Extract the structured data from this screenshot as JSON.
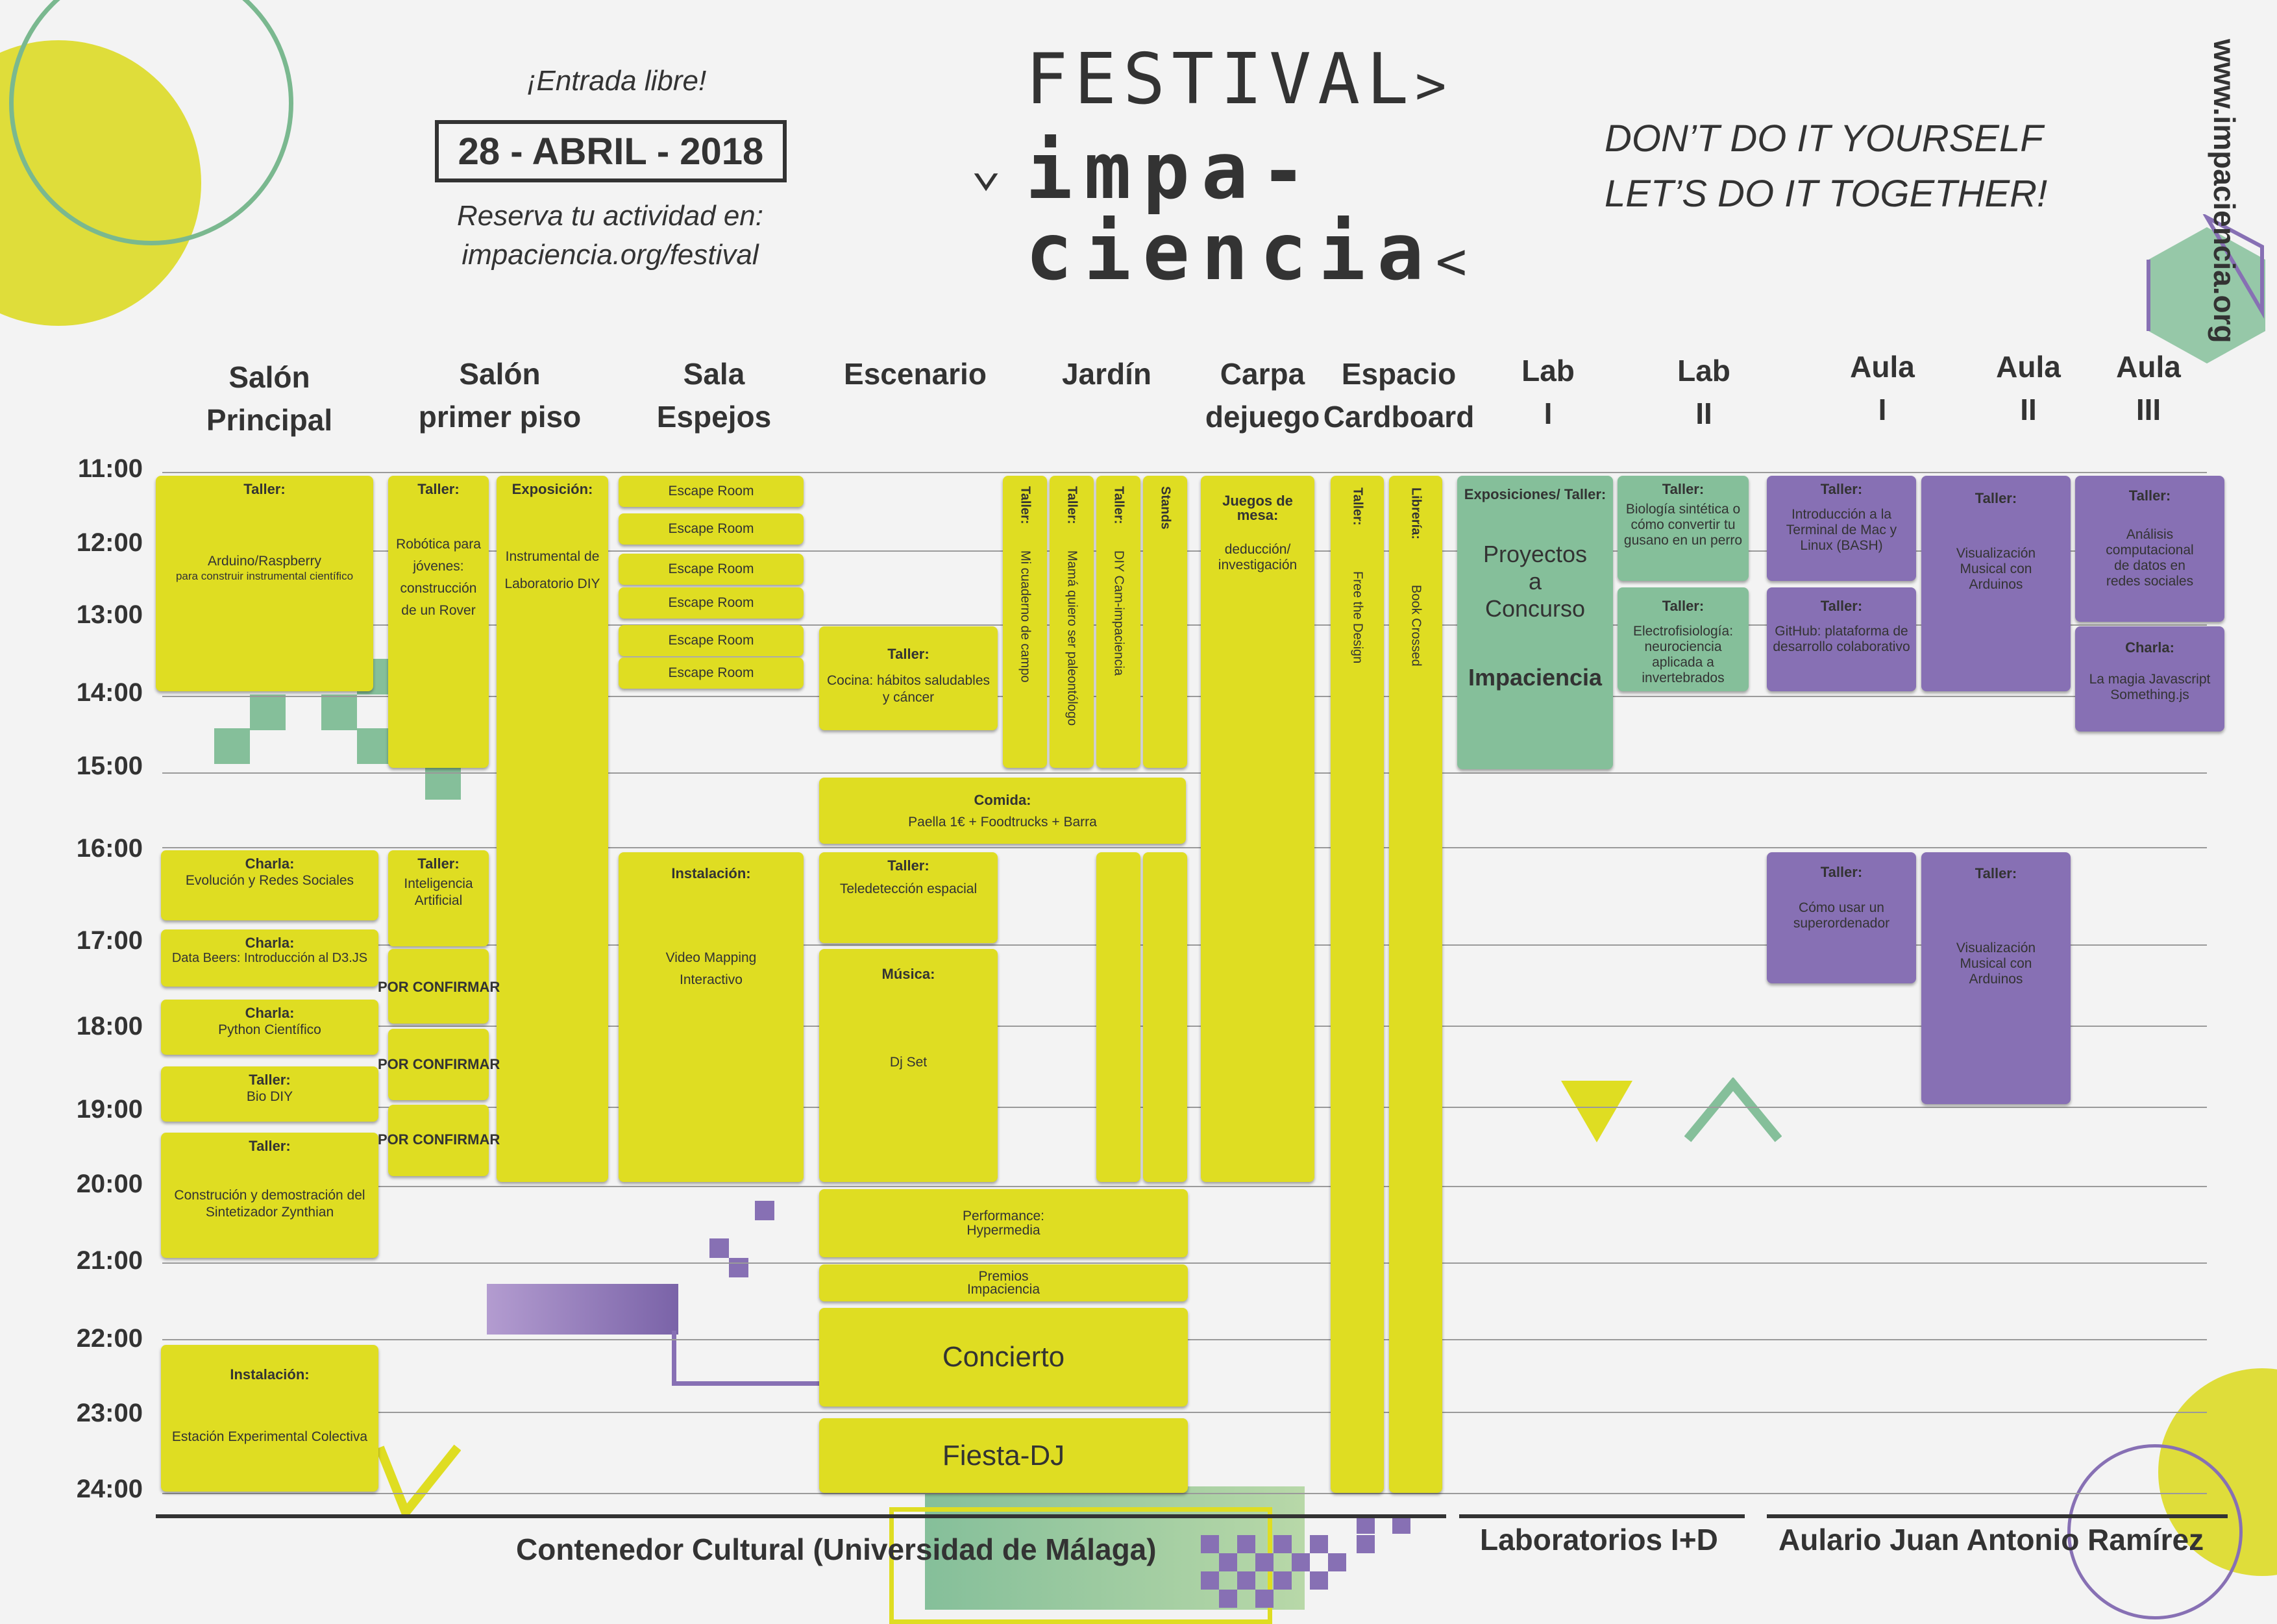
{
  "header": {
    "entrada": "¡Entrada libre!",
    "date": "28 - ABRIL - 2018",
    "reserva": "Reserva tu actividad en:",
    "reserva_url": "impaciencia.org/festival",
    "festival": "FESTIVAL",
    "impa": "impa-",
    "ciencia": "ciencia",
    "slogan1": "DON’T DO IT YOURSELF",
    "slogan2": "LET’S DO IT TOGETHER!",
    "website": "www.impaciencia.org"
  },
  "columns": [
    {
      "l1": "Salón",
      "l2": "Principal"
    },
    {
      "l1": "Salón",
      "l2": "primer piso"
    },
    {
      "l1": "Sala",
      "l2": "Espejos"
    },
    {
      "l1": "Escenario",
      "l2": ""
    },
    {
      "l1": "Jardín",
      "l2": ""
    },
    {
      "l1": "Carpa",
      "l2": "dejuego"
    },
    {
      "l1": "Espacio",
      "l2": "Cardboard"
    },
    {
      "l1": "Lab",
      "l2": "I"
    },
    {
      "l1": "Lab",
      "l2": "II"
    },
    {
      "l1": "Aula",
      "l2": "I"
    },
    {
      "l1": "Aula",
      "l2": "II"
    },
    {
      "l1": "Aula",
      "l2": "III"
    }
  ],
  "times": [
    "11:00",
    "12:00",
    "13:00",
    "14:00",
    "15:00",
    "16:00",
    "17:00",
    "18:00",
    "19:00",
    "20:00",
    "21:00",
    "22:00",
    "23:00",
    "24:00"
  ],
  "blocks": {
    "sp_taller_t": "Taller:",
    "sp_arduino": "Arduino/Raspberry",
    "sp_arduino_sub": "para construir instrumental científico",
    "sp_charla_t": "Charla:",
    "sp_evolucion": "Evolución y Redes Sociales",
    "sp_charla2_t": "Charla:",
    "sp_databeers": "Data Beers: Introducción al D3.JS",
    "sp_charla3_t": "Charla:",
    "sp_python": "Python Científico",
    "sp_taller2_t": "Taller:",
    "sp_biodiy": "Bio DIY",
    "sp_taller3_t": "Taller:",
    "sp_sintetizador": "Construción y demostración del Sintetizador Zynthian",
    "sp_instal_t": "Instalación:",
    "sp_estacion": "Estación Experimental Colectiva",
    "pp_taller_t": "Taller:",
    "pp_robotica": "Robótica para jóvenes: construcción de un Rover",
    "pp_expo_t": "Exposición:",
    "pp_instrumental": "Instrumental de Laboratorio DIY",
    "pp_taller2_t": "Taller:",
    "pp_ia": "Inteligencia Artificial",
    "pp_pc1": "POR CONFIRMAR",
    "pp_pc2": "POR CONFIRMAR",
    "pp_pc3": "POR CONFIRMAR",
    "se_escape": "Escape  Room",
    "se_instal_t": "Instalación:",
    "se_video": "Video Mapping Interactivo",
    "es_taller_t": "Taller:",
    "es_cocina": "Cocina: hábitos saludables y cáncer",
    "es_comida_t": "Comida:",
    "es_paella": "Paella 1€ + Foodtrucks + Barra",
    "es_taller2_t": "Taller:",
    "es_teledeteccion": "Teledetección espacial",
    "es_musica_t": "Música:",
    "es_djset": "Dj Set",
    "es_performance": "Performance: Hypermedia",
    "es_premios": "Premios Impaciencia",
    "es_concierto": "Concierto",
    "es_fiesta": "Fiesta-DJ",
    "ja_taller1_t": "Taller:",
    "ja_cuaderno": "Mi cuaderno  de campo",
    "ja_taller2_t": "Taller:",
    "ja_mama": "Mamá quiero ser paleontólogo",
    "ja_taller3_t": "Taller:",
    "ja_cam": "DIY Cam-impaciencia",
    "ja_stands": "Stands",
    "ca_juegos_t": "Juegos de mesa:",
    "ca_deduccion": "deducción/ investigación",
    "ec_taller_t": "Taller:",
    "ec_free": "Free the Design",
    "ec_libreria_t": "Librería:",
    "ec_book": "Book Crossed",
    "l1_expo_t": "Exposiciones/ Taller:",
    "l1_proyectos": "Proyectos a Concurso",
    "l1_impaciencia": "Impaciencia",
    "l2_taller_t": "Taller:",
    "l2_biologia": "Biología sintética o cómo convertir tu gusano en un perro",
    "l2_taller2_t": "Taller:",
    "l2_electro": "Electrofisiología: neurociencia aplicada a invertebrados",
    "a1_taller_t": "Taller:",
    "a1_intro": "Introducción a la Terminal de Mac y Linux (BASH)",
    "a1_taller2_t": "Taller:",
    "a1_github": "GitHub: plataforma de desarrollo colaborativo",
    "a1_taller3_t": "Taller:",
    "a1_super": "Cómo usar un superordenador",
    "a2_taller_t": "Taller:",
    "a2_visual": "Visualización Musical con Arduinos",
    "a2_taller2_t": "Taller:",
    "a2_visual2": "Visualización Musical con Arduinos",
    "a3_taller_t": "Taller:",
    "a3_analisis": "Análisis computacional de datos  en redes sociales",
    "a3_charla_t": "Charla:",
    "a3_magia": "La magia Javascript Something.js"
  },
  "footer": {
    "contenedor": "Contenedor Cultural (Universidad de Málaga)",
    "laboratorios": "Laboratorios I+D",
    "aulario": "Aulario Juan Antonio Ramírez"
  },
  "colors": {
    "yellow": "#dfdd22",
    "green": "#85bf9a",
    "purple": "#8770b4"
  }
}
